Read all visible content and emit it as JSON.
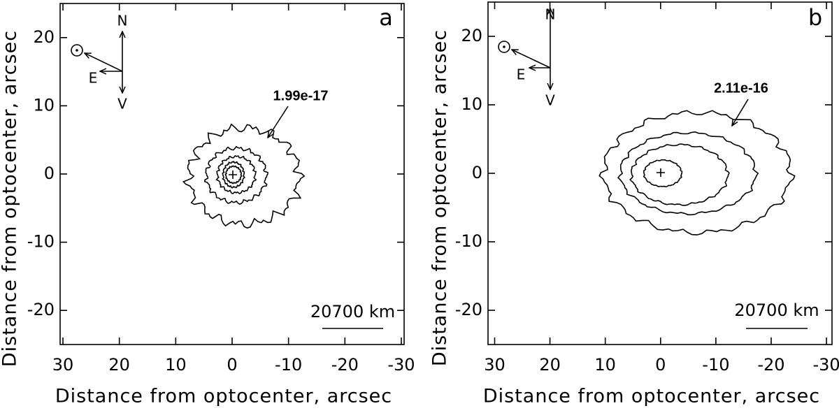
{
  "chart_data": [
    {
      "type": "contour",
      "panel_label": "a",
      "xlabel": "Distance from optocenter, arcsec",
      "ylabel": "Distance from optocenter, arcsec",
      "xlim": [
        30.5,
        -30.5
      ],
      "ylim": [
        -25,
        25
      ],
      "xticks": [
        30,
        20,
        10,
        0,
        -10,
        -20,
        -30
      ],
      "yticks": [
        -20,
        -10,
        0,
        10,
        20
      ],
      "annotation": "1.99e-17",
      "scale_label": "20700 km",
      "compass": {
        "north": "N",
        "east": "E",
        "velocity": "V"
      }
    },
    {
      "type": "contour",
      "panel_label": "b",
      "xlabel": "Distance from optocenter, arcsec",
      "ylabel": "Distance from optocenter, arcsec",
      "xlim": [
        31.2,
        -31
      ],
      "ylim": [
        -25,
        25
      ],
      "xticks": [
        30,
        20,
        10,
        0,
        -10,
        -20,
        -30
      ],
      "yticks": [
        -20,
        -10,
        0,
        10,
        20
      ],
      "annotation": "2.11e-16",
      "scale_label": "20700 km",
      "compass": {
        "north": "N",
        "east": "E",
        "velocity": "V"
      }
    }
  ]
}
